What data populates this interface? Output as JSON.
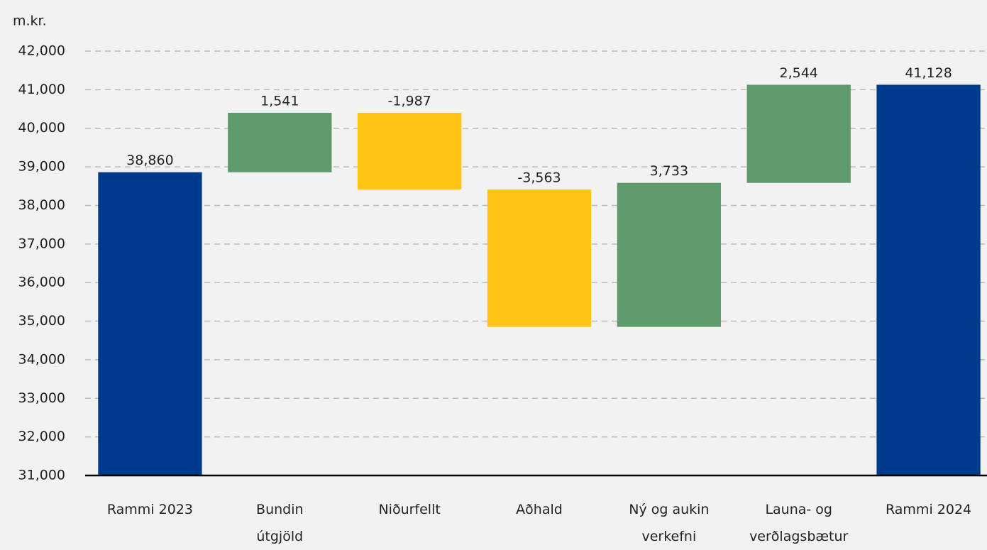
{
  "chart_data": {
    "type": "waterfall",
    "y_unit": "m.kr.",
    "categories": [
      "Rammi 2023",
      "Bundin\nútgjöld",
      "Niðurfellt",
      "Aðhald",
      "Ný og aukin\nverkefni",
      "Launa- og\nverðlagsbætur",
      "Rammi 2024"
    ],
    "measure": [
      "absolute",
      "relative",
      "relative",
      "relative",
      "relative",
      "relative",
      "total"
    ],
    "values": [
      38860,
      1541,
      -1987,
      -3563,
      3733,
      2544,
      41128
    ],
    "value_labels": [
      "38,860",
      "1,541",
      "-1,987",
      "-3,563",
      "3,733",
      "2,544",
      "41,128"
    ],
    "colors": [
      "#003a8c",
      "#5f9a6c",
      "#ffc414",
      "#ffc414",
      "#5f9a6c",
      "#5f9a6c",
      "#003a8c"
    ],
    "ylim": [
      31000,
      42000
    ],
    "yticks": [
      {
        "value": 31000,
        "label": "31,000"
      },
      {
        "value": 32000,
        "label": "32,000"
      },
      {
        "value": 33000,
        "label": "33,000"
      },
      {
        "value": 34000,
        "label": "34,000"
      },
      {
        "value": 35000,
        "label": "35,000"
      },
      {
        "value": 36000,
        "label": "36,000"
      },
      {
        "value": 37000,
        "label": "37,000"
      },
      {
        "value": 38000,
        "label": "38,000"
      },
      {
        "value": 39000,
        "label": "39,000"
      },
      {
        "value": 40000,
        "label": "40,000"
      },
      {
        "value": 41000,
        "label": "41,000"
      },
      {
        "value": 42000,
        "label": "42,000"
      }
    ],
    "grid": true
  }
}
